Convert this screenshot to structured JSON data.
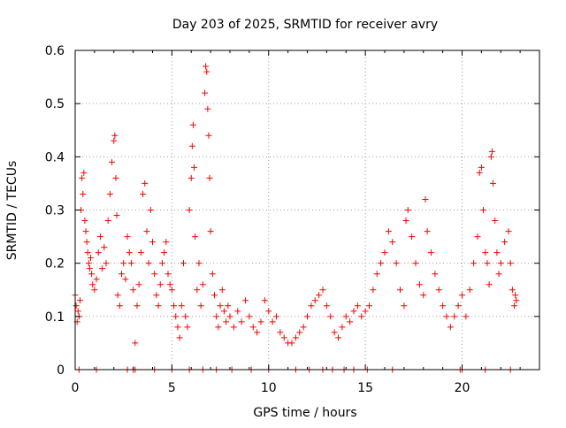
{
  "chart_data": {
    "type": "scatter",
    "title": "Day 203 of 2025, SRMTID for receiver avry",
    "xlabel": "GPS time / hours",
    "ylabel": "SRMTID / TECUs",
    "xlim": [
      0,
      24
    ],
    "ylim": [
      0,
      0.6
    ],
    "xticks": [
      0,
      5,
      10,
      15,
      20
    ],
    "xtick_labels": [
      "0",
      "5",
      "10",
      "15",
      "20"
    ],
    "yticks": [
      0,
      0.1,
      0.2,
      0.3,
      0.4,
      0.5,
      0.6
    ],
    "ytick_labels": [
      "0",
      "0.1",
      "0.2",
      "0.3",
      "0.4",
      "0.5",
      "0.6"
    ],
    "grid": true,
    "marker": "+",
    "color": "#ff0000",
    "series": [
      {
        "name": "SRMTID",
        "points": [
          [
            0.0,
            0.14
          ],
          [
            0.05,
            0.12
          ],
          [
            0.1,
            0.09
          ],
          [
            0.15,
            0.11
          ],
          [
            0.2,
            0.1
          ],
          [
            0.25,
            0.13
          ],
          [
            0.3,
            0.3
          ],
          [
            0.35,
            0.36
          ],
          [
            0.4,
            0.33
          ],
          [
            0.45,
            0.37
          ],
          [
            0.5,
            0.28
          ],
          [
            0.55,
            0.26
          ],
          [
            0.6,
            0.24
          ],
          [
            0.65,
            0.22
          ],
          [
            0.7,
            0.2
          ],
          [
            0.75,
            0.19
          ],
          [
            0.8,
            0.21
          ],
          [
            0.85,
            0.18
          ],
          [
            0.9,
            0.16
          ],
          [
            1.0,
            0.15
          ],
          [
            1.1,
            0.17
          ],
          [
            1.2,
            0.22
          ],
          [
            1.3,
            0.25
          ],
          [
            1.4,
            0.19
          ],
          [
            1.5,
            0.23
          ],
          [
            1.6,
            0.2
          ],
          [
            1.7,
            0.28
          ],
          [
            1.8,
            0.33
          ],
          [
            1.9,
            0.39
          ],
          [
            2.0,
            0.43
          ],
          [
            2.05,
            0.44
          ],
          [
            2.1,
            0.36
          ],
          [
            2.15,
            0.29
          ],
          [
            2.2,
            0.14
          ],
          [
            2.3,
            0.12
          ],
          [
            2.4,
            0.18
          ],
          [
            2.5,
            0.2
          ],
          [
            2.6,
            0.17
          ],
          [
            2.7,
            0.25
          ],
          [
            2.8,
            0.22
          ],
          [
            2.9,
            0.2
          ],
          [
            3.0,
            0.15
          ],
          [
            3.1,
            0.05
          ],
          [
            3.2,
            0.12
          ],
          [
            3.3,
            0.16
          ],
          [
            3.4,
            0.22
          ],
          [
            3.5,
            0.33
          ],
          [
            3.6,
            0.35
          ],
          [
            3.7,
            0.26
          ],
          [
            3.8,
            0.2
          ],
          [
            3.9,
            0.3
          ],
          [
            4.0,
            0.24
          ],
          [
            4.1,
            0.18
          ],
          [
            4.2,
            0.14
          ],
          [
            4.3,
            0.12
          ],
          [
            4.4,
            0.16
          ],
          [
            4.5,
            0.2
          ],
          [
            4.6,
            0.22
          ],
          [
            4.7,
            0.24
          ],
          [
            4.8,
            0.18
          ],
          [
            4.9,
            0.16
          ],
          [
            5.0,
            0.15
          ],
          [
            5.1,
            0.12
          ],
          [
            5.2,
            0.1
          ],
          [
            5.3,
            0.08
          ],
          [
            5.4,
            0.06
          ],
          [
            5.5,
            0.12
          ],
          [
            5.6,
            0.2
          ],
          [
            5.7,
            0.1
          ],
          [
            5.8,
            0.08
          ],
          [
            5.9,
            0.3
          ],
          [
            6.0,
            0.36
          ],
          [
            6.05,
            0.42
          ],
          [
            6.1,
            0.46
          ],
          [
            6.15,
            0.38
          ],
          [
            6.2,
            0.25
          ],
          [
            6.3,
            0.15
          ],
          [
            6.4,
            0.2
          ],
          [
            6.5,
            0.12
          ],
          [
            6.6,
            0.16
          ],
          [
            6.7,
            0.52
          ],
          [
            6.75,
            0.57
          ],
          [
            6.8,
            0.56
          ],
          [
            6.85,
            0.49
          ],
          [
            6.9,
            0.44
          ],
          [
            6.95,
            0.36
          ],
          [
            7.0,
            0.26
          ],
          [
            7.1,
            0.18
          ],
          [
            7.2,
            0.14
          ],
          [
            7.3,
            0.1
          ],
          [
            7.4,
            0.08
          ],
          [
            7.5,
            0.12
          ],
          [
            7.6,
            0.15
          ],
          [
            7.7,
            0.11
          ],
          [
            7.8,
            0.09
          ],
          [
            7.9,
            0.12
          ],
          [
            8.0,
            0.1
          ],
          [
            8.2,
            0.08
          ],
          [
            8.4,
            0.11
          ],
          [
            8.6,
            0.09
          ],
          [
            8.8,
            0.13
          ],
          [
            9.0,
            0.1
          ],
          [
            9.2,
            0.08
          ],
          [
            9.4,
            0.07
          ],
          [
            9.6,
            0.09
          ],
          [
            9.8,
            0.13
          ],
          [
            10.0,
            0.11
          ],
          [
            10.2,
            0.09
          ],
          [
            10.4,
            0.1
          ],
          [
            10.6,
            0.07
          ],
          [
            10.8,
            0.06
          ],
          [
            11.0,
            0.05
          ],
          [
            11.2,
            0.05
          ],
          [
            11.4,
            0.06
          ],
          [
            11.6,
            0.07
          ],
          [
            11.8,
            0.08
          ],
          [
            12.0,
            0.1
          ],
          [
            12.2,
            0.12
          ],
          [
            12.4,
            0.13
          ],
          [
            12.6,
            0.14
          ],
          [
            12.8,
            0.15
          ],
          [
            13.0,
            0.12
          ],
          [
            13.2,
            0.1
          ],
          [
            13.4,
            0.07
          ],
          [
            13.6,
            0.06
          ],
          [
            13.8,
            0.08
          ],
          [
            14.0,
            0.1
          ],
          [
            14.2,
            0.09
          ],
          [
            14.4,
            0.11
          ],
          [
            14.6,
            0.12
          ],
          [
            14.8,
            0.1
          ],
          [
            15.0,
            0.11
          ],
          [
            15.2,
            0.12
          ],
          [
            15.4,
            0.15
          ],
          [
            15.6,
            0.18
          ],
          [
            15.8,
            0.2
          ],
          [
            16.0,
            0.22
          ],
          [
            16.2,
            0.26
          ],
          [
            16.4,
            0.24
          ],
          [
            16.6,
            0.2
          ],
          [
            16.8,
            0.15
          ],
          [
            17.0,
            0.12
          ],
          [
            17.1,
            0.28
          ],
          [
            17.2,
            0.3
          ],
          [
            17.4,
            0.25
          ],
          [
            17.6,
            0.2
          ],
          [
            17.8,
            0.16
          ],
          [
            18.0,
            0.14
          ],
          [
            18.1,
            0.32
          ],
          [
            18.2,
            0.26
          ],
          [
            18.4,
            0.22
          ],
          [
            18.6,
            0.18
          ],
          [
            18.8,
            0.15
          ],
          [
            19.0,
            0.12
          ],
          [
            19.2,
            0.1
          ],
          [
            19.4,
            0.08
          ],
          [
            19.6,
            0.1
          ],
          [
            19.8,
            0.12
          ],
          [
            20.0,
            0.14
          ],
          [
            20.2,
            0.1
          ],
          [
            20.4,
            0.15
          ],
          [
            20.6,
            0.2
          ],
          [
            20.8,
            0.25
          ],
          [
            20.9,
            0.37
          ],
          [
            21.0,
            0.38
          ],
          [
            21.1,
            0.3
          ],
          [
            21.2,
            0.22
          ],
          [
            21.3,
            0.2
          ],
          [
            21.4,
            0.16
          ],
          [
            21.5,
            0.4
          ],
          [
            21.55,
            0.41
          ],
          [
            21.6,
            0.35
          ],
          [
            21.7,
            0.28
          ],
          [
            21.8,
            0.22
          ],
          [
            21.9,
            0.18
          ],
          [
            22.0,
            0.2
          ],
          [
            22.2,
            0.24
          ],
          [
            22.4,
            0.26
          ],
          [
            22.5,
            0.2
          ],
          [
            22.6,
            0.15
          ],
          [
            22.7,
            0.12
          ],
          [
            22.75,
            0.14
          ],
          [
            22.8,
            0.13
          ],
          [
            0.2,
            0
          ],
          [
            1.1,
            0
          ],
          [
            2.7,
            0
          ],
          [
            3.0,
            0
          ],
          [
            3.1,
            0
          ],
          [
            4.1,
            0
          ],
          [
            5.0,
            0
          ],
          [
            5.9,
            0
          ],
          [
            6.6,
            0
          ],
          [
            7.3,
            0
          ],
          [
            8.1,
            0
          ],
          [
            9.1,
            0
          ],
          [
            10.0,
            0
          ],
          [
            11.4,
            0
          ],
          [
            12.1,
            0
          ],
          [
            12.8,
            0
          ],
          [
            13.3,
            0
          ],
          [
            13.9,
            0
          ],
          [
            14.4,
            0
          ],
          [
            15.1,
            0
          ],
          [
            16.4,
            0
          ],
          [
            19.9,
            0
          ],
          [
            20.0,
            0
          ],
          [
            21.2,
            0
          ],
          [
            22.5,
            0
          ]
        ]
      }
    ]
  }
}
